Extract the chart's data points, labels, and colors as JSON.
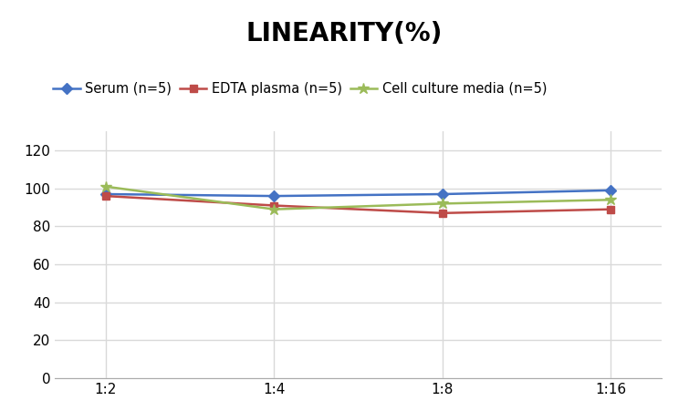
{
  "title": "LINEARITY(%)",
  "title_fontsize": 20,
  "title_fontweight": "bold",
  "x_labels": [
    "1:2",
    "1:4",
    "1:8",
    "1:16"
  ],
  "x_positions": [
    0,
    1,
    2,
    3
  ],
  "series": [
    {
      "label": "Serum (n=5)",
      "values": [
        97,
        96,
        97,
        99
      ],
      "color": "#4472C4",
      "marker": "D",
      "marker_size": 6,
      "linewidth": 1.8
    },
    {
      "label": "EDTA plasma (n=5)",
      "values": [
        96,
        91,
        87,
        89
      ],
      "color": "#BE4B48",
      "marker": "s",
      "marker_size": 6,
      "linewidth": 1.8
    },
    {
      "label": "Cell culture media (n=5)",
      "values": [
        101,
        89,
        92,
        94
      ],
      "color": "#9BBB59",
      "marker": "*",
      "marker_size": 9,
      "linewidth": 1.8
    }
  ],
  "ylim": [
    0,
    130
  ],
  "yticks": [
    0,
    20,
    40,
    60,
    80,
    100,
    120
  ],
  "grid_color": "#D9D9D9",
  "grid_linewidth": 1.0,
  "background_color": "#FFFFFF",
  "legend_fontsize": 10.5,
  "tick_fontsize": 11,
  "figsize": [
    7.55,
    4.51
  ],
  "dpi": 100
}
